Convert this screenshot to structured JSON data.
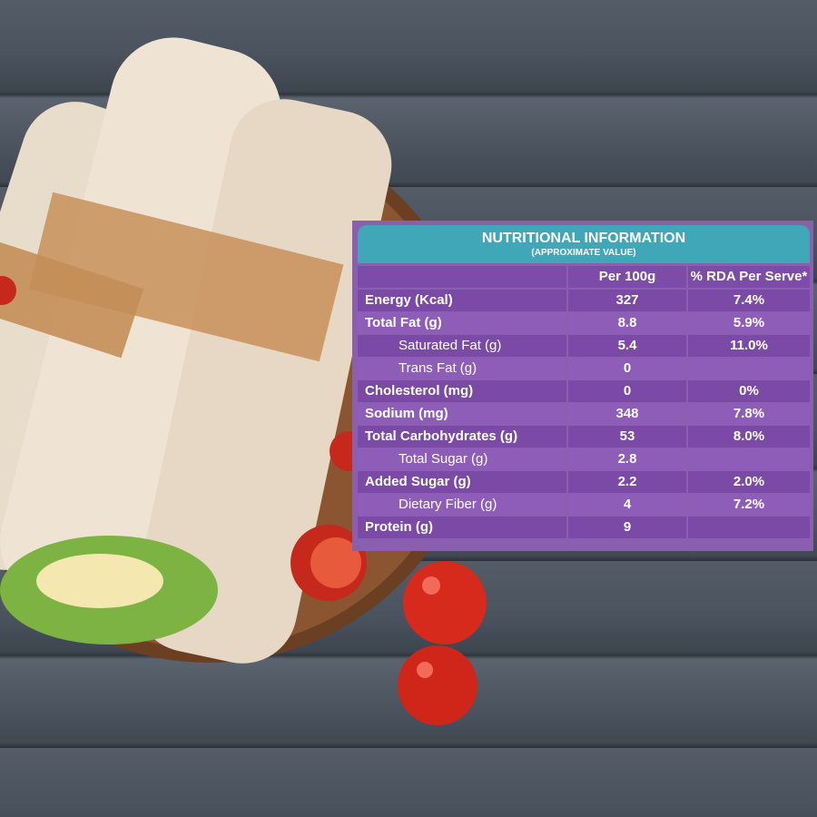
{
  "table": {
    "title": "NUTRITIONAL INFORMATION",
    "subtitle": "(APPROXIMATE VALUE)",
    "columns": [
      "Per 100g",
      "% RDA Per Serve*"
    ],
    "rows": [
      {
        "label": "Energy (Kcal)",
        "per_100g": 327,
        "rda": "7.4%",
        "sub": false
      },
      {
        "label": "Total Fat (g)",
        "per_100g": 8.8,
        "rda": "5.9%",
        "sub": false
      },
      {
        "label": "Saturated Fat (g)",
        "per_100g": 5.4,
        "rda": "11.0%",
        "sub": true
      },
      {
        "label": "Trans Fat (g)",
        "per_100g": 0,
        "sub": true
      },
      {
        "label": "Cholesterol (mg)",
        "per_100g": 0,
        "rda": "0%",
        "sub": false
      },
      {
        "label": "Sodium (mg)",
        "per_100g": 348,
        "rda": "7.8%",
        "sub": false
      },
      {
        "label": "Total Carbohydrates (g)",
        "per_100g": 53,
        "rda": "8.0%",
        "sub": false
      },
      {
        "label": "Total Sugar (g)",
        "per_100g": 2.8,
        "sub": true
      },
      {
        "label": "Added Sugar (g)",
        "per_100g": 2.2,
        "rda": "2.0%",
        "sub": false
      },
      {
        "label": "Dietary Fiber (g)",
        "per_100g": 4,
        "rda": "7.2%",
        "sub": true
      },
      {
        "label": "Protein (g)",
        "per_100g": 9,
        "sub": false
      }
    ]
  }
}
